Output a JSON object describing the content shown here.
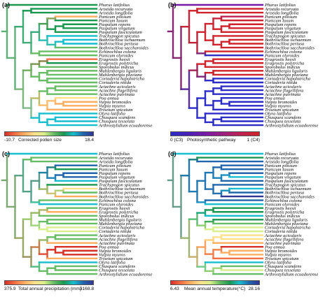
{
  "panels": [
    {
      "label": "(a)",
      "legend": {
        "min": "-10.7",
        "title": "Corrected pollen size",
        "max": "18.4"
      },
      "colorbar": [
        "#d73027",
        "#f46d43",
        "#fdae61",
        "#fee08b",
        "#d9ef8b",
        "#66bd63",
        "#1a9850",
        "#17becf",
        "#2166ac",
        "#313695"
      ]
    },
    {
      "label": "(b)",
      "legend": {
        "min": "0 (C3)",
        "title": "Photosynthetic pathway",
        "max": "1 (C4)"
      },
      "colorbar": [
        "#2c2cc8",
        "#4a20b8",
        "#7a1aa8",
        "#a01f7e",
        "#c0234f",
        "#d0222a"
      ]
    },
    {
      "label": "(c)",
      "legend": {
        "min": "375.9",
        "title": "Total annual precipitation (mm)",
        "max": "3168.8"
      },
      "colorbar": [
        "#d73027",
        "#f46d43",
        "#fdae61",
        "#fee08b",
        "#d9ef8b",
        "#66bd63",
        "#1a9850",
        "#17becf",
        "#2166ac",
        "#313695"
      ]
    },
    {
      "label": "(d)",
      "legend": {
        "min": "6.43",
        "title": "Mean annual temperature(°C)",
        "max": "28.16"
      },
      "colorbar": [
        "#d73027",
        "#f46d43",
        "#fdae61",
        "#fee08b",
        "#d9ef8b",
        "#66bd63",
        "#1a9850",
        "#17becf",
        "#2166ac",
        "#313695"
      ]
    }
  ],
  "taxa": [
    "Pharus latifolius",
    "Aristida recuryata",
    "Aristida longifolia",
    "Panicum pilosum",
    "Panicum laxum",
    "Paspalum repens",
    "Paspalum virgatum",
    "Paspalum fasciculatum",
    "Trachypogon spicatus",
    "Bothriochloa ischaemum",
    "Bothriochloa pertusa",
    "Bothriochloa saccharoides",
    "Echinochloa colona",
    "Panicum olyroides",
    "Eragrostis heesii",
    "Eragrostis polytricha",
    "Sporobolus indicus",
    "Muhlenbergia ligularis",
    "Muhlenbergia pluviana",
    "Cortaderia hapalotricha",
    "Cortaderia nitida",
    "Aciachne acicularis",
    "Aciachne flagellifera",
    "Aciachne pulvinata",
    "Poa annua",
    "Vulpia bromoides",
    "Vulpia myuros",
    "Trisetum spicatum",
    "Olyra latifolia",
    "Chusquea scandens",
    "Chusquea tesselata",
    "Arthrostylidium ecuadorense"
  ],
  "tip_colors": [
    [
      "#1a9850",
      "#1a9850",
      "#1a9850",
      "#fdae61",
      "#1a9850",
      "#1a9850",
      "#1a9850",
      "#1a9850",
      "#17becf",
      "#17becf",
      "#17becf",
      "#66bd63",
      "#66bd63",
      "#66bd63",
      "#f46d43",
      "#1a9850",
      "#66bd63",
      "#66bd63",
      "#66bd63",
      "#66bd63",
      "#66bd63",
      "#66bd63",
      "#66bd63",
      "#66bd63",
      "#fee08b",
      "#fdae61",
      "#fdae61",
      "#fdae61",
      "#17becf",
      "#17becf",
      "#17becf",
      "#17becf"
    ],
    [
      "#7a1aa8",
      "#d0222a",
      "#d0222a",
      "#c0234f",
      "#d0222a",
      "#d0222a",
      "#d0222a",
      "#d0222a",
      "#d0222a",
      "#d0222a",
      "#d0222a",
      "#d0222a",
      "#d0222a",
      "#2c2cc8",
      "#d0222a",
      "#d0222a",
      "#d0222a",
      "#d0222a",
      "#d0222a",
      "#2c2cc8",
      "#2c2cc8",
      "#2c2cc8",
      "#2c2cc8",
      "#2c2cc8",
      "#2c2cc8",
      "#2c2cc8",
      "#2c2cc8",
      "#2c2cc8",
      "#2c2cc8",
      "#2c2cc8",
      "#2c2cc8",
      "#2c2cc8"
    ],
    [
      "#17becf",
      "#66bd63",
      "#66bd63",
      "#2166ac",
      "#1a9850",
      "#2166ac",
      "#2166ac",
      "#17becf",
      "#1a9850",
      "#fee08b",
      "#66bd63",
      "#fdae61",
      "#66bd63",
      "#17becf",
      "#66bd63",
      "#fdae61",
      "#66bd63",
      "#66bd63",
      "#66bd63",
      "#d9ef8b",
      "#d9ef8b",
      "#66bd63",
      "#66bd63",
      "#fdae61",
      "#d73027",
      "#d73027",
      "#d73027",
      "#fdae61",
      "#17becf",
      "#66bd63",
      "#66bd63",
      "#66bd63"
    ],
    [
      "#17becf",
      "#1a9850",
      "#2166ac",
      "#2166ac",
      "#2166ac",
      "#2166ac",
      "#17becf",
      "#2166ac",
      "#2166ac",
      "#17becf",
      "#2166ac",
      "#313695",
      "#2166ac",
      "#17becf",
      "#1a9850",
      "#1a9850",
      "#17becf",
      "#1a9850",
      "#66bd63",
      "#d9ef8b",
      "#d9ef8b",
      "#fee08b",
      "#fee08b",
      "#fdae61",
      "#d73027",
      "#fdae61",
      "#fdae61",
      "#f46d43",
      "#17becf",
      "#66bd63",
      "#d9ef8b",
      "#66bd63"
    ]
  ]
}
